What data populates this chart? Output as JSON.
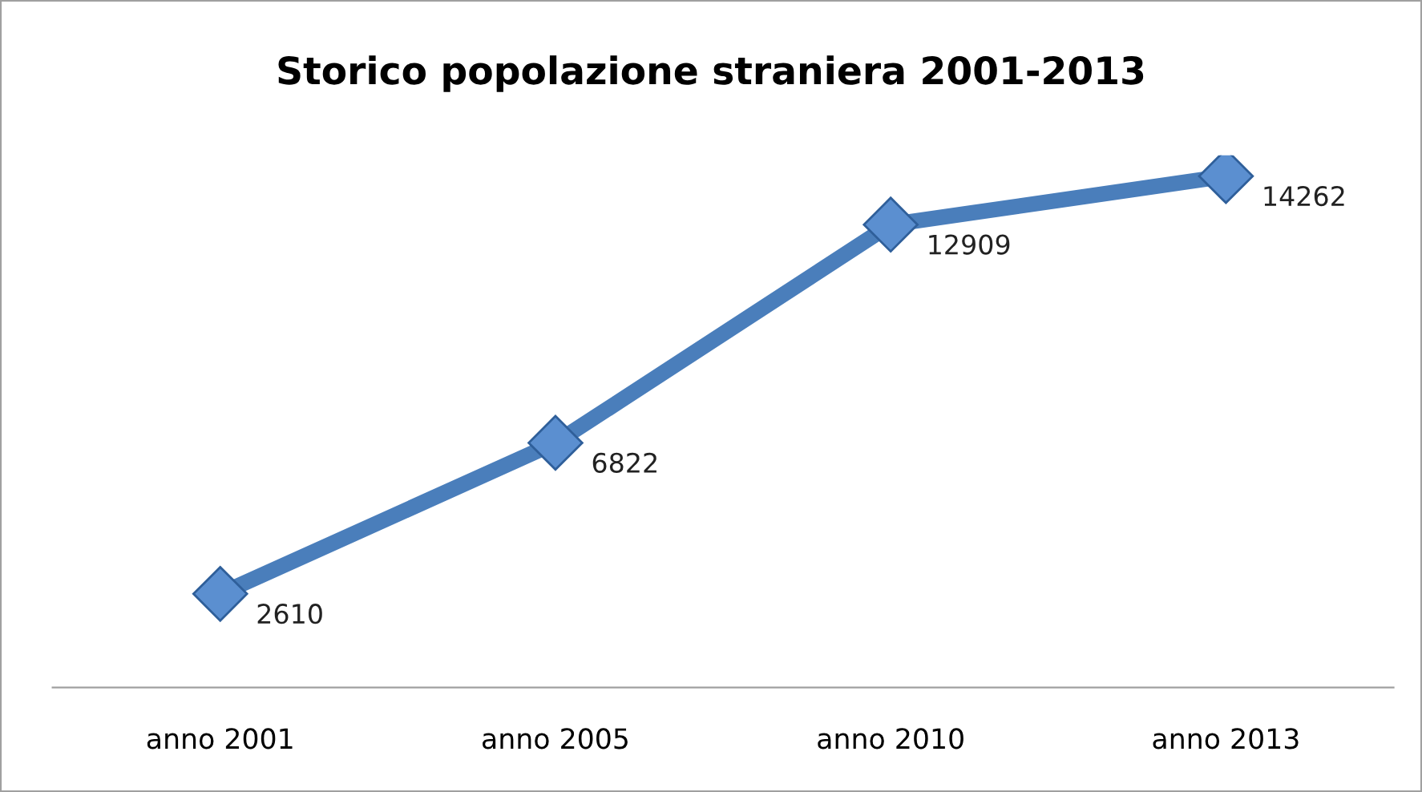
{
  "chart_data": {
    "type": "line",
    "title": "Storico popolazione straniera 2001-2013",
    "categories": [
      "anno 2001",
      "anno 2005",
      "anno 2010",
      "anno 2013"
    ],
    "series": [
      {
        "color": "#4a7ebb",
        "values": [
          2610,
          6822,
          12909,
          14262
        ]
      }
    ],
    "tick_labels": "x",
    "data_labels": true,
    "marker": "diamond",
    "line_style": "solid",
    "grid": false,
    "legend": false
  }
}
